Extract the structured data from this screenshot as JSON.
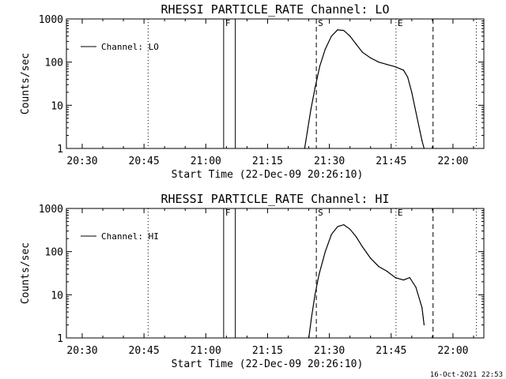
{
  "footer": "16-Oct-2021 22:53",
  "chart_data": [
    {
      "type": "line",
      "title": "RHESSI PARTICLE_RATE Channel: LO",
      "xlabel": "Start Time (22-Dec-09 20:26:10)",
      "ylabel": "Counts/sec",
      "xlim": [
        "20:26:10",
        "22:07:30"
      ],
      "ylim": [
        1,
        1000
      ],
      "yscale": "log",
      "x_ticks": [
        "20:30",
        "20:45",
        "21:00",
        "21:15",
        "21:30",
        "21:45",
        "22:00"
      ],
      "y_ticks": [
        "1",
        "10",
        "100",
        "1000"
      ],
      "legend": "top-left",
      "series": [
        {
          "name": "Channel: LO",
          "x": [
            "21:24:00",
            "21:24:40",
            "21:25:30",
            "21:26:30",
            "21:27:40",
            "21:29:00",
            "21:30:30",
            "21:32:00",
            "21:33:30",
            "21:35:00",
            "21:36:30",
            "21:38:00",
            "21:40:00",
            "21:42:00",
            "21:44:00",
            "21:46:00",
            "21:48:00",
            "21:49:00",
            "21:50:00",
            "21:51:00",
            "21:52:00",
            "21:52:30",
            "21:53:00"
          ],
          "values": [
            1,
            2.5,
            8,
            25,
            80,
            200,
            400,
            560,
            540,
            400,
            260,
            170,
            125,
            100,
            88,
            78,
            65,
            45,
            20,
            7,
            2.5,
            1.5,
            1
          ]
        }
      ],
      "markers": [
        {
          "label": "F",
          "x": "21:04:20",
          "style": "solid"
        },
        {
          "label": "",
          "x": "21:07:10",
          "style": "solid"
        },
        {
          "label": "S",
          "x": "21:26:50",
          "style": "dashed"
        },
        {
          "label": "E",
          "x": "21:46:10",
          "style": "dotted"
        },
        {
          "label": "",
          "x": "21:55:10",
          "style": "dashed"
        },
        {
          "label": "",
          "x": "20:46:00",
          "style": "dotted"
        },
        {
          "label": "",
          "x": "22:05:40",
          "style": "dotted"
        }
      ]
    },
    {
      "type": "line",
      "title": "RHESSI PARTICLE_RATE Channel: HI",
      "xlabel": "Start Time (22-Dec-09 20:26:10)",
      "ylabel": "Counts/sec",
      "xlim": [
        "20:26:10",
        "22:07:30"
      ],
      "ylim": [
        1,
        1000
      ],
      "yscale": "log",
      "x_ticks": [
        "20:30",
        "20:45",
        "21:00",
        "21:15",
        "21:30",
        "21:45",
        "22:00"
      ],
      "y_ticks": [
        "1",
        "10",
        "100",
        "1000"
      ],
      "legend": "top-left",
      "series": [
        {
          "name": "Channel: HI",
          "x": [
            "21:25:00",
            "21:25:40",
            "21:26:30",
            "21:27:30",
            "21:29:00",
            "21:30:30",
            "21:32:00",
            "21:33:30",
            "21:35:00",
            "21:36:30",
            "21:38:00",
            "21:40:00",
            "21:42:00",
            "21:44:00",
            "21:46:00",
            "21:48:00",
            "21:49:30",
            "21:51:00",
            "21:52:30",
            "21:53:00"
          ],
          "values": [
            1,
            3,
            10,
            30,
            100,
            250,
            380,
            420,
            330,
            220,
            130,
            70,
            45,
            35,
            25,
            22,
            25,
            15,
            5,
            2
          ]
        }
      ],
      "markers": [
        {
          "label": "F",
          "x": "21:04:20",
          "style": "solid"
        },
        {
          "label": "",
          "x": "21:07:10",
          "style": "solid"
        },
        {
          "label": "S",
          "x": "21:26:50",
          "style": "dashed"
        },
        {
          "label": "E",
          "x": "21:46:10",
          "style": "dotted"
        },
        {
          "label": "",
          "x": "21:55:10",
          "style": "dashed"
        },
        {
          "label": "",
          "x": "20:46:00",
          "style": "dotted"
        },
        {
          "label": "",
          "x": "22:05:40",
          "style": "dotted"
        }
      ]
    }
  ]
}
